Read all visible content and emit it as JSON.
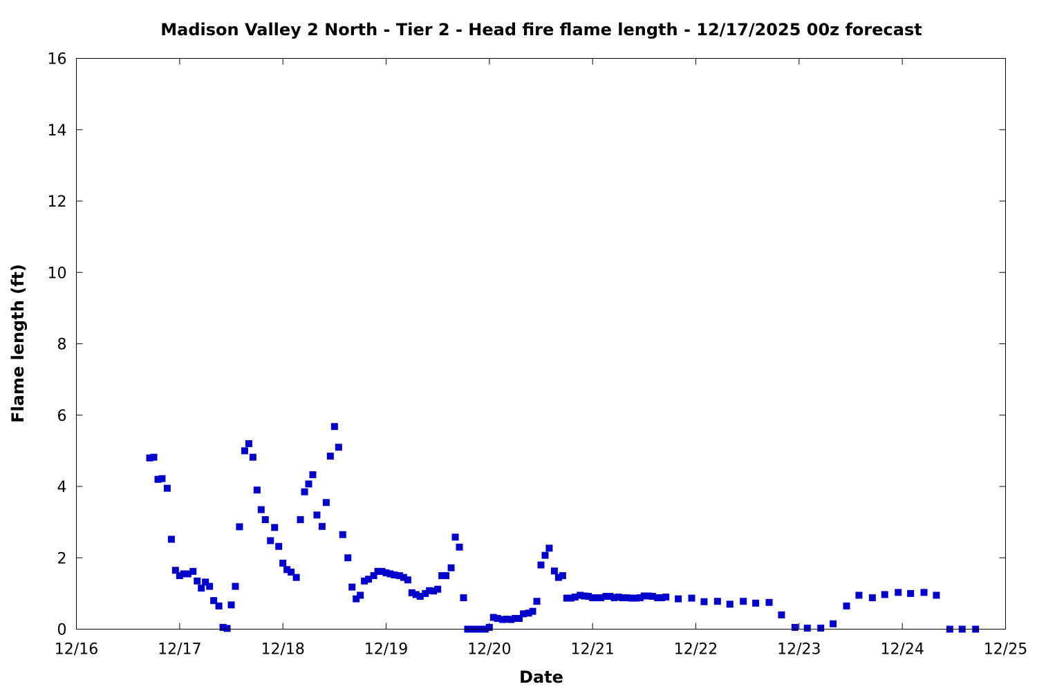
{
  "chart_data": {
    "type": "scatter",
    "title": "Madison Valley 2 North - Tier 2 - Head fire flame length - 12/17/2025 00z forecast",
    "xlabel": "Date",
    "ylabel": "Flame length (ft)",
    "x_units": "days after 12/16 00z",
    "xlim": [
      0,
      9
    ],
    "ylim": [
      0,
      16
    ],
    "x_tick_labels": [
      "12/16",
      "12/17",
      "12/18",
      "12/19",
      "12/20",
      "12/21",
      "12/22",
      "12/23",
      "12/24",
      "12/25"
    ],
    "y_tick_labels": [
      "0",
      "2",
      "4",
      "6",
      "8",
      "10",
      "12",
      "14",
      "16"
    ],
    "grid": false,
    "marker": "square",
    "color": "#0000cc",
    "series": [
      {
        "x": [
          0.71,
          0.75,
          0.79,
          0.83,
          0.88,
          0.92,
          0.96,
          1.0,
          1.04,
          1.08,
          1.13,
          1.17,
          1.21,
          1.25,
          1.29,
          1.33,
          1.38,
          1.42,
          1.46,
          1.5,
          1.54,
          1.58,
          1.63,
          1.67,
          1.71,
          1.75,
          1.79,
          1.83,
          1.88,
          1.92,
          1.96,
          2.0,
          2.04,
          2.08,
          2.13,
          2.17,
          2.21,
          2.25,
          2.29,
          2.33,
          2.38,
          2.42,
          2.46,
          2.5,
          2.54,
          2.58,
          2.63,
          2.67,
          2.71,
          2.75,
          2.79,
          2.83,
          2.88,
          2.92,
          2.96,
          3.0,
          3.04,
          3.08,
          3.13,
          3.17,
          3.21,
          3.25,
          3.29,
          3.33,
          3.38,
          3.42,
          3.46,
          3.5,
          3.54,
          3.58,
          3.63,
          3.67,
          3.71,
          3.75,
          3.79,
          3.83,
          3.88,
          3.92,
          3.96,
          4.0,
          4.04,
          4.08,
          4.13,
          4.17,
          4.21,
          4.25,
          4.29,
          4.33,
          4.38,
          4.42,
          4.46,
          4.5,
          4.54,
          4.58,
          4.63,
          4.67,
          4.71,
          4.75,
          4.79,
          4.83,
          4.88,
          4.92,
          4.96,
          5.0,
          5.04,
          5.08,
          5.13,
          5.17,
          5.21,
          5.25,
          5.29,
          5.33,
          5.38,
          5.42,
          5.46,
          5.5,
          5.54,
          5.58,
          5.63,
          5.67,
          5.71,
          5.83,
          5.96,
          6.08,
          6.21,
          6.33,
          6.46,
          6.58,
          6.71,
          6.83,
          6.96,
          7.08,
          7.21,
          7.33,
          7.46,
          7.58,
          7.71,
          7.83,
          7.96,
          8.08,
          8.21,
          8.33,
          8.46,
          8.58,
          8.71
        ],
        "y": [
          4.8,
          4.82,
          4.2,
          4.22,
          3.95,
          2.52,
          1.65,
          1.5,
          1.55,
          1.55,
          1.62,
          1.35,
          1.15,
          1.32,
          1.2,
          0.8,
          0.65,
          0.05,
          0.02,
          0.68,
          1.2,
          2.87,
          5.0,
          5.2,
          4.82,
          3.9,
          3.35,
          3.07,
          2.48,
          2.85,
          2.32,
          1.85,
          1.67,
          1.6,
          1.45,
          3.07,
          3.85,
          4.07,
          4.33,
          3.2,
          2.88,
          3.55,
          4.85,
          5.68,
          5.1,
          2.65,
          2.0,
          1.18,
          0.85,
          0.95,
          1.35,
          1.4,
          1.5,
          1.62,
          1.62,
          1.58,
          1.55,
          1.52,
          1.5,
          1.45,
          1.38,
          1.02,
          0.97,
          0.92,
          1.0,
          1.08,
          1.07,
          1.12,
          1.5,
          1.5,
          1.72,
          2.58,
          2.3,
          0.88,
          0.0,
          0.0,
          0.0,
          0.0,
          0.0,
          0.05,
          0.33,
          0.3,
          0.27,
          0.28,
          0.27,
          0.3,
          0.3,
          0.43,
          0.45,
          0.5,
          0.78,
          1.8,
          2.07,
          2.27,
          1.63,
          1.45,
          1.5,
          0.87,
          0.87,
          0.9,
          0.95,
          0.93,
          0.92,
          0.88,
          0.88,
          0.88,
          0.92,
          0.92,
          0.88,
          0.9,
          0.88,
          0.88,
          0.87,
          0.87,
          0.88,
          0.93,
          0.93,
          0.92,
          0.88,
          0.88,
          0.9,
          0.85,
          0.87,
          0.77,
          0.78,
          0.7,
          0.78,
          0.73,
          0.75,
          0.4,
          0.05,
          0.03,
          0.03,
          0.15,
          0.65,
          0.95,
          0.88,
          0.97,
          1.03,
          1.0,
          1.03,
          0.95,
          0.0,
          0.0,
          0.0
        ]
      }
    ]
  }
}
